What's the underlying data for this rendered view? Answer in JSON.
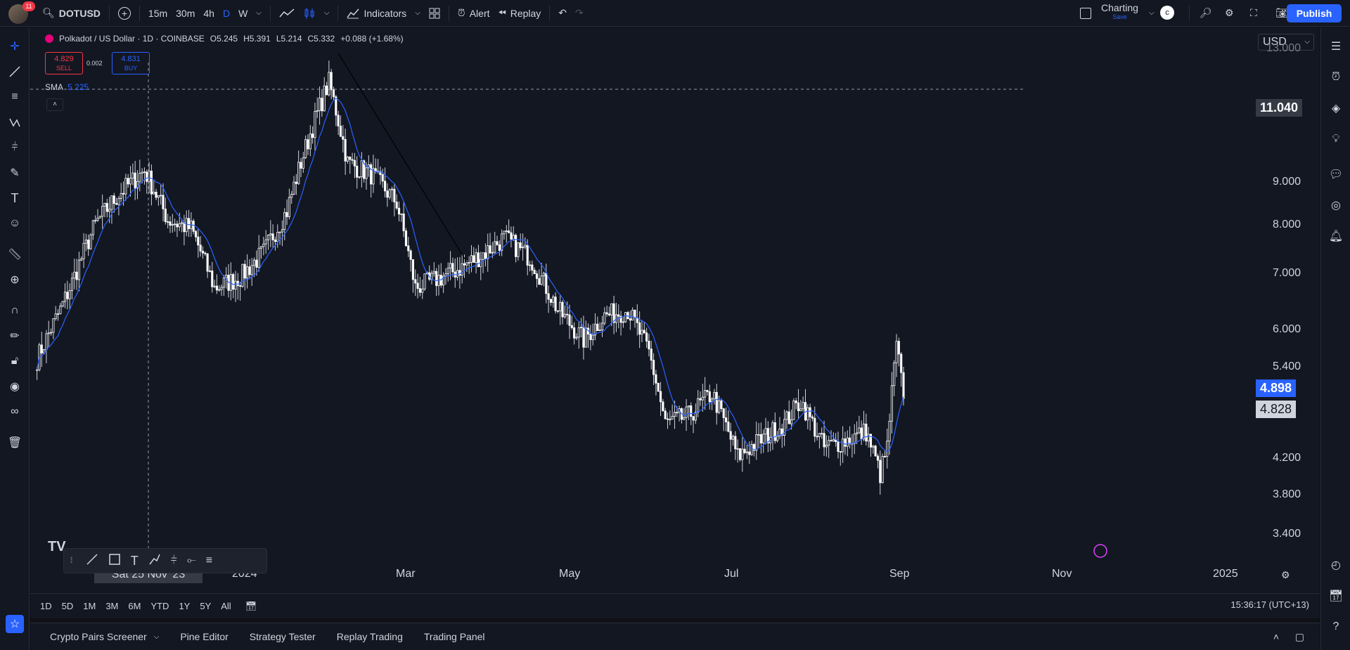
{
  "top_bar": {
    "notification_count": "11",
    "symbol": "DOTUSD",
    "intervals": [
      "15m",
      "30m",
      "4h",
      "D",
      "W"
    ],
    "active_interval": "D",
    "indicators_label": "Indicators",
    "alert_label": "Alert",
    "replay_label": "Replay",
    "layout_name": "Charting",
    "layout_status": "Save",
    "publish_label": "Publish"
  },
  "legend": {
    "title": "Polkadot / US Dollar · 1D · COINBASE",
    "open": "O5.245",
    "high": "H5.391",
    "low": "L5.214",
    "close": "C5.332",
    "change": "+0.088 (+1.68%)",
    "sell_price": "4.829",
    "sell_label": "SELL",
    "spread": "0.002",
    "buy_price": "4.831",
    "buy_label": "BUY",
    "sma_label": "SMA",
    "sma_value": "5.225"
  },
  "currency": "USD",
  "price_axis": {
    "labels": [
      "13.000",
      "11.040",
      "9.000",
      "8.000",
      "7.000",
      "6.000",
      "5.400",
      "4.898",
      "4.828",
      "4.200",
      "3.800",
      "3.400"
    ],
    "crosshair_price": "11.040",
    "sma_tag": "4.898",
    "last_price_tag": "4.828"
  },
  "time_axis": {
    "labels": [
      "2024",
      "Mar",
      "May",
      "Jul",
      "Sep",
      "Nov",
      "2025"
    ],
    "crosshair_date": "Sat 25 Nov '23"
  },
  "range_buttons": [
    "1D",
    "5D",
    "1M",
    "3M",
    "6M",
    "YTD",
    "1Y",
    "5Y",
    "All"
  ],
  "clock": "15:36:17 (UTC+13)",
  "bottom_tabs": [
    "Crypto Pairs Screener",
    "Pine Editor",
    "Strategy Tester",
    "Replay Trading",
    "Trading Panel"
  ],
  "colors": {
    "up": "#ffffff",
    "down": "#ffffff",
    "sma": "#2962ff",
    "accent": "#2962ff",
    "sell": "#f23645",
    "bg": "#131722"
  },
  "chart_data": {
    "type": "candlestick",
    "symbol": "DOTUSD",
    "interval": "1D",
    "y_scale": "log",
    "ylim": [
      3.3,
      13.5
    ],
    "close_series": [
      {
        "date": "2023-11-10",
        "close": 5.4
      },
      {
        "date": "2023-11-20",
        "close": 6.2
      },
      {
        "date": "2023-11-25",
        "close": 6.7
      },
      {
        "date": "2023-12-05",
        "close": 7.9
      },
      {
        "date": "2023-12-15",
        "close": 8.6
      },
      {
        "date": "2023-12-26",
        "close": 9.2
      },
      {
        "date": "2024-01-05",
        "close": 8.0
      },
      {
        "date": "2024-01-15",
        "close": 7.8
      },
      {
        "date": "2024-01-25",
        "close": 6.6
      },
      {
        "date": "2024-02-05",
        "close": 6.8
      },
      {
        "date": "2024-02-15",
        "close": 7.3
      },
      {
        "date": "2024-02-25",
        "close": 8.2
      },
      {
        "date": "2024-03-06",
        "close": 10.2
      },
      {
        "date": "2024-03-14",
        "close": 11.8
      },
      {
        "date": "2024-03-22",
        "close": 9.4
      },
      {
        "date": "2024-04-01",
        "close": 9.1
      },
      {
        "date": "2024-04-12",
        "close": 8.4
      },
      {
        "date": "2024-04-20",
        "close": 6.6
      },
      {
        "date": "2024-05-01",
        "close": 6.8
      },
      {
        "date": "2024-05-10",
        "close": 7.0
      },
      {
        "date": "2024-05-20",
        "close": 7.3
      },
      {
        "date": "2024-05-28",
        "close": 7.6
      },
      {
        "date": "2024-06-08",
        "close": 7.2
      },
      {
        "date": "2024-06-20",
        "close": 6.2
      },
      {
        "date": "2024-07-01",
        "close": 5.7
      },
      {
        "date": "2024-07-10",
        "close": 6.1
      },
      {
        "date": "2024-07-20",
        "close": 6.2
      },
      {
        "date": "2024-07-29",
        "close": 5.5
      },
      {
        "date": "2024-08-05",
        "close": 4.5
      },
      {
        "date": "2024-08-15",
        "close": 4.6
      },
      {
        "date": "2024-08-25",
        "close": 4.9
      },
      {
        "date": "2024-09-05",
        "close": 4.1
      },
      {
        "date": "2024-09-15",
        "close": 4.3
      },
      {
        "date": "2024-09-25",
        "close": 4.5
      },
      {
        "date": "2024-10-02",
        "close": 4.8
      },
      {
        "date": "2024-10-12",
        "close": 4.2
      },
      {
        "date": "2024-10-22",
        "close": 4.3
      },
      {
        "date": "2024-10-30",
        "close": 4.4
      },
      {
        "date": "2024-11-05",
        "close": 3.9
      },
      {
        "date": "2024-11-08",
        "close": 4.2
      },
      {
        "date": "2024-11-12",
        "close": 5.6
      },
      {
        "date": "2024-11-15",
        "close": 4.83
      }
    ]
  }
}
